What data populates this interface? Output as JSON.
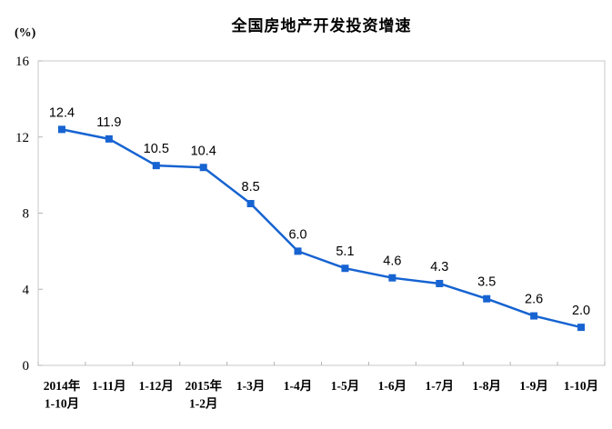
{
  "chart_data": {
    "type": "line",
    "title": "全国房地产开发投资增速",
    "ylabel": "(%)",
    "xlabel": "",
    "categories": [
      [
        "2014年",
        "1-10月"
      ],
      [
        "1-11月"
      ],
      [
        "1-12月"
      ],
      [
        "2015年",
        "1-2月"
      ],
      [
        "1-3月"
      ],
      [
        "1-4月"
      ],
      [
        "1-5月"
      ],
      [
        "1-6月"
      ],
      [
        "1-7月"
      ],
      [
        "1-8月"
      ],
      [
        "1-9月"
      ],
      [
        "1-10月"
      ]
    ],
    "values": [
      12.4,
      11.9,
      10.5,
      10.4,
      8.5,
      6.0,
      5.1,
      4.6,
      4.3,
      3.5,
      2.6,
      2.0
    ],
    "data_labels": [
      "12.4",
      "11.9",
      "10.5",
      "10.4",
      "8.5",
      "6.0",
      "5.1",
      "4.6",
      "4.3",
      "3.5",
      "2.6",
      "2.0"
    ],
    "ylim": [
      0,
      16
    ],
    "yticks": [
      0,
      4,
      8,
      12,
      16
    ],
    "grid": false,
    "legend": "none",
    "line_color": "#1663D1",
    "marker": "square",
    "plot_border_color": "#C8C8C8",
    "tick_color": "#B4B4B4",
    "text_color": "#000000"
  }
}
